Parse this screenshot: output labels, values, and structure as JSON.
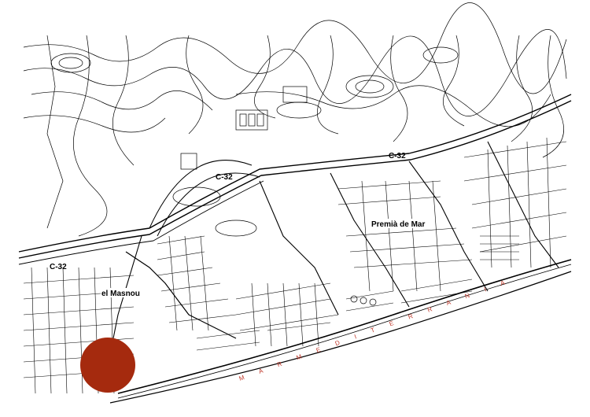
{
  "map": {
    "labels": {
      "town_masnou": "el Masnou",
      "town_premia": "Premià de Mar",
      "road_west": "C-32",
      "road_center": "C-32",
      "road_east": "C-32"
    },
    "sea_label": "M A R   M E D I T E R R A N I A",
    "marker": {
      "color": "#a52a0e"
    },
    "colors": {
      "line": "#000000",
      "sea_text": "#c0392b",
      "background": "#ffffff"
    }
  }
}
